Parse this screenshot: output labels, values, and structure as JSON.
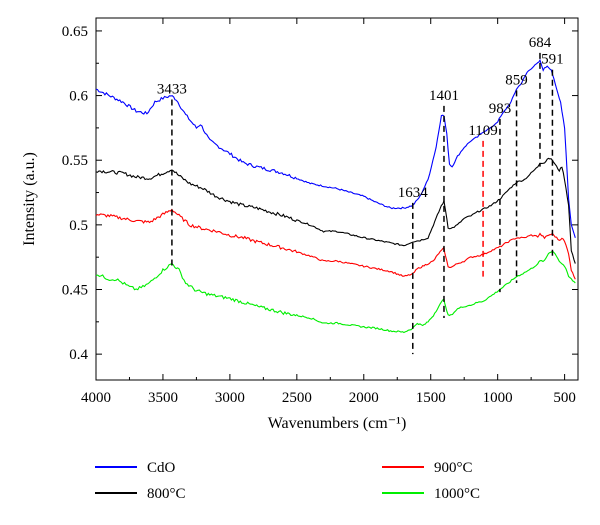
{
  "chart_data": {
    "type": "line",
    "title": "",
    "xlabel": "Wavenumbers (cm⁻¹)",
    "ylabel": "Intensity (a.u.)",
    "xlim": [
      4000,
      400
    ],
    "ylim": [
      0.38,
      0.66
    ],
    "x_reversed": true,
    "xticks": [
      4000,
      3500,
      3000,
      2500,
      2000,
      1500,
      1000,
      500
    ],
    "yticks": [
      0.4,
      0.45,
      0.5,
      0.55,
      0.6,
      0.65
    ],
    "x_tick_labels": [
      "4000",
      "3500",
      "3000",
      "2500",
      "2000",
      "1500",
      "1000",
      "500"
    ],
    "y_tick_labels": [
      "0.4",
      "0.45",
      "0.5",
      "0.55",
      "0.6",
      "0.65"
    ],
    "grid": false,
    "legend_position": "below",
    "series": [
      {
        "name": "CdO",
        "color": "#0000ff",
        "points": [
          [
            4000,
            0.605
          ],
          [
            3900,
            0.6
          ],
          [
            3800,
            0.595
          ],
          [
            3700,
            0.588
          ],
          [
            3620,
            0.586
          ],
          [
            3560,
            0.595
          ],
          [
            3500,
            0.598
          ],
          [
            3440,
            0.6
          ],
          [
            3400,
            0.597
          ],
          [
            3330,
            0.585
          ],
          [
            3250,
            0.575
          ],
          [
            3220,
            0.578
          ],
          [
            3150,
            0.565
          ],
          [
            3000,
            0.555
          ],
          [
            2900,
            0.548
          ],
          [
            2800,
            0.545
          ],
          [
            2600,
            0.54
          ],
          [
            2400,
            0.532
          ],
          [
            2300,
            0.53
          ],
          [
            2200,
            0.528
          ],
          [
            2000,
            0.522
          ],
          [
            1900,
            0.517
          ],
          [
            1800,
            0.513
          ],
          [
            1700,
            0.513
          ],
          [
            1634,
            0.515
          ],
          [
            1580,
            0.522
          ],
          [
            1520,
            0.535
          ],
          [
            1460,
            0.56
          ],
          [
            1420,
            0.585
          ],
          [
            1400,
            0.584
          ],
          [
            1380,
            0.57
          ],
          [
            1360,
            0.547
          ],
          [
            1340,
            0.545
          ],
          [
            1300,
            0.553
          ],
          [
            1250,
            0.56
          ],
          [
            1200,
            0.565
          ],
          [
            1150,
            0.568
          ],
          [
            1109,
            0.572
          ],
          [
            1050,
            0.575
          ],
          [
            1000,
            0.58
          ],
          [
            950,
            0.588
          ],
          [
            900,
            0.595
          ],
          [
            860,
            0.605
          ],
          [
            820,
            0.61
          ],
          [
            780,
            0.618
          ],
          [
            740,
            0.622
          ],
          [
            700,
            0.625
          ],
          [
            684,
            0.627
          ],
          [
            660,
            0.62
          ],
          [
            630,
            0.623
          ],
          [
            600,
            0.62
          ],
          [
            560,
            0.605
          ],
          [
            530,
            0.595
          ],
          [
            500,
            0.575
          ],
          [
            470,
            0.52
          ],
          [
            450,
            0.5
          ],
          [
            420,
            0.49
          ]
        ]
      },
      {
        "name": "800°C",
        "color": "#000000",
        "points": [
          [
            4000,
            0.542
          ],
          [
            3900,
            0.541
          ],
          [
            3800,
            0.54
          ],
          [
            3700,
            0.537
          ],
          [
            3600,
            0.536
          ],
          [
            3500,
            0.54
          ],
          [
            3433,
            0.543
          ],
          [
            3380,
            0.538
          ],
          [
            3300,
            0.532
          ],
          [
            3200,
            0.528
          ],
          [
            3100,
            0.522
          ],
          [
            3000,
            0.518
          ],
          [
            2900,
            0.515
          ],
          [
            2800,
            0.513
          ],
          [
            2600,
            0.507
          ],
          [
            2400,
            0.5
          ],
          [
            2300,
            0.495
          ],
          [
            2200,
            0.495
          ],
          [
            2000,
            0.49
          ],
          [
            1900,
            0.488
          ],
          [
            1800,
            0.486
          ],
          [
            1700,
            0.484
          ],
          [
            1634,
            0.487
          ],
          [
            1580,
            0.488
          ],
          [
            1520,
            0.49
          ],
          [
            1480,
            0.5
          ],
          [
            1440,
            0.51
          ],
          [
            1420,
            0.515
          ],
          [
            1401,
            0.518
          ],
          [
            1390,
            0.512
          ],
          [
            1370,
            0.498
          ],
          [
            1350,
            0.497
          ],
          [
            1300,
            0.5
          ],
          [
            1250,
            0.505
          ],
          [
            1200,
            0.507
          ],
          [
            1150,
            0.51
          ],
          [
            1109,
            0.512
          ],
          [
            1050,
            0.515
          ],
          [
            983,
            0.52
          ],
          [
            920,
            0.527
          ],
          [
            859,
            0.533
          ],
          [
            800,
            0.535
          ],
          [
            750,
            0.54
          ],
          [
            700,
            0.545
          ],
          [
            684,
            0.548
          ],
          [
            650,
            0.548
          ],
          [
            620,
            0.552
          ],
          [
            591,
            0.55
          ],
          [
            560,
            0.545
          ],
          [
            540,
            0.542
          ],
          [
            520,
            0.545
          ],
          [
            500,
            0.535
          ],
          [
            470,
            0.515
          ],
          [
            450,
            0.48
          ],
          [
            420,
            0.47
          ]
        ]
      },
      {
        "name": "900°C",
        "color": "#ff0000",
        "points": [
          [
            4000,
            0.508
          ],
          [
            3900,
            0.507
          ],
          [
            3800,
            0.505
          ],
          [
            3700,
            0.503
          ],
          [
            3600,
            0.502
          ],
          [
            3500,
            0.508
          ],
          [
            3433,
            0.512
          ],
          [
            3380,
            0.507
          ],
          [
            3300,
            0.5
          ],
          [
            3200,
            0.497
          ],
          [
            3100,
            0.495
          ],
          [
            3000,
            0.492
          ],
          [
            2900,
            0.49
          ],
          [
            2800,
            0.487
          ],
          [
            2600,
            0.482
          ],
          [
            2400,
            0.476
          ],
          [
            2300,
            0.472
          ],
          [
            2200,
            0.472
          ],
          [
            2000,
            0.468
          ],
          [
            1900,
            0.466
          ],
          [
            1800,
            0.464
          ],
          [
            1700,
            0.46
          ],
          [
            1634,
            0.462
          ],
          [
            1600,
            0.466
          ],
          [
            1560,
            0.468
          ],
          [
            1520,
            0.47
          ],
          [
            1480,
            0.472
          ],
          [
            1440,
            0.478
          ],
          [
            1420,
            0.48
          ],
          [
            1401,
            0.482
          ],
          [
            1390,
            0.476
          ],
          [
            1370,
            0.468
          ],
          [
            1350,
            0.467
          ],
          [
            1300,
            0.47
          ],
          [
            1250,
            0.472
          ],
          [
            1200,
            0.475
          ],
          [
            1150,
            0.476
          ],
          [
            1109,
            0.477
          ],
          [
            1050,
            0.48
          ],
          [
            983,
            0.483
          ],
          [
            920,
            0.487
          ],
          [
            859,
            0.49
          ],
          [
            800,
            0.49
          ],
          [
            750,
            0.492
          ],
          [
            700,
            0.491
          ],
          [
            684,
            0.493
          ],
          [
            650,
            0.49
          ],
          [
            620,
            0.492
          ],
          [
            591,
            0.493
          ],
          [
            560,
            0.49
          ],
          [
            540,
            0.488
          ],
          [
            520,
            0.49
          ],
          [
            500,
            0.487
          ],
          [
            470,
            0.478
          ],
          [
            450,
            0.465
          ],
          [
            420,
            0.458
          ]
        ]
      },
      {
        "name": "1000°C",
        "color": "#00ee00",
        "points": [
          [
            4000,
            0.462
          ],
          [
            3950,
            0.46
          ],
          [
            3900,
            0.458
          ],
          [
            3850,
            0.458
          ],
          [
            3800,
            0.455
          ],
          [
            3750,
            0.452
          ],
          [
            3700,
            0.45
          ],
          [
            3650,
            0.452
          ],
          [
            3600,
            0.455
          ],
          [
            3550,
            0.46
          ],
          [
            3500,
            0.465
          ],
          [
            3433,
            0.47
          ],
          [
            3380,
            0.465
          ],
          [
            3330,
            0.455
          ],
          [
            3250,
            0.449
          ],
          [
            3150,
            0.446
          ],
          [
            3000,
            0.443
          ],
          [
            2900,
            0.44
          ],
          [
            2800,
            0.437
          ],
          [
            2600,
            0.432
          ],
          [
            2400,
            0.428
          ],
          [
            2300,
            0.424
          ],
          [
            2200,
            0.424
          ],
          [
            2000,
            0.421
          ],
          [
            1900,
            0.42
          ],
          [
            1800,
            0.418
          ],
          [
            1700,
            0.417
          ],
          [
            1634,
            0.42
          ],
          [
            1600,
            0.424
          ],
          [
            1560,
            0.422
          ],
          [
            1520,
            0.425
          ],
          [
            1480,
            0.43
          ],
          [
            1440,
            0.437
          ],
          [
            1420,
            0.44
          ],
          [
            1401,
            0.443
          ],
          [
            1390,
            0.437
          ],
          [
            1370,
            0.43
          ],
          [
            1350,
            0.43
          ],
          [
            1300,
            0.435
          ],
          [
            1250,
            0.437
          ],
          [
            1200,
            0.438
          ],
          [
            1150,
            0.44
          ],
          [
            1109,
            0.441
          ],
          [
            1050,
            0.445
          ],
          [
            983,
            0.45
          ],
          [
            920,
            0.455
          ],
          [
            859,
            0.46
          ],
          [
            800,
            0.463
          ],
          [
            750,
            0.466
          ],
          [
            700,
            0.47
          ],
          [
            684,
            0.472
          ],
          [
            650,
            0.472
          ],
          [
            620,
            0.478
          ],
          [
            591,
            0.48
          ],
          [
            560,
            0.476
          ],
          [
            540,
            0.472
          ],
          [
            520,
            0.47
          ],
          [
            500,
            0.468
          ],
          [
            470,
            0.46
          ],
          [
            450,
            0.458
          ],
          [
            420,
            0.455
          ]
        ]
      }
    ],
    "annotations": [
      {
        "label": "3433",
        "x": 3433,
        "y_top": 0.597,
        "y_bottom": 0.468,
        "color": "#000000"
      },
      {
        "label": "1634",
        "x": 1634,
        "y_top": 0.517,
        "y_bottom": 0.4,
        "color": "#000000"
      },
      {
        "label": "1401",
        "x": 1401,
        "y_top": 0.592,
        "y_bottom": 0.428,
        "color": "#000000"
      },
      {
        "label": "1109",
        "x": 1109,
        "y_top": 0.565,
        "y_bottom": 0.46,
        "color": "#ff0000"
      },
      {
        "label": "983",
        "x": 983,
        "y_top": 0.582,
        "y_bottom": 0.448,
        "color": "#000000"
      },
      {
        "label": "859",
        "x": 859,
        "y_top": 0.604,
        "y_bottom": 0.455,
        "color": "#000000"
      },
      {
        "label": "684",
        "x": 684,
        "y_top": 0.633,
        "y_bottom": 0.545,
        "color": "#000000"
      },
      {
        "label": "591",
        "x": 591,
        "y_top": 0.62,
        "y_bottom": 0.476,
        "color": "#000000"
      }
    ]
  }
}
